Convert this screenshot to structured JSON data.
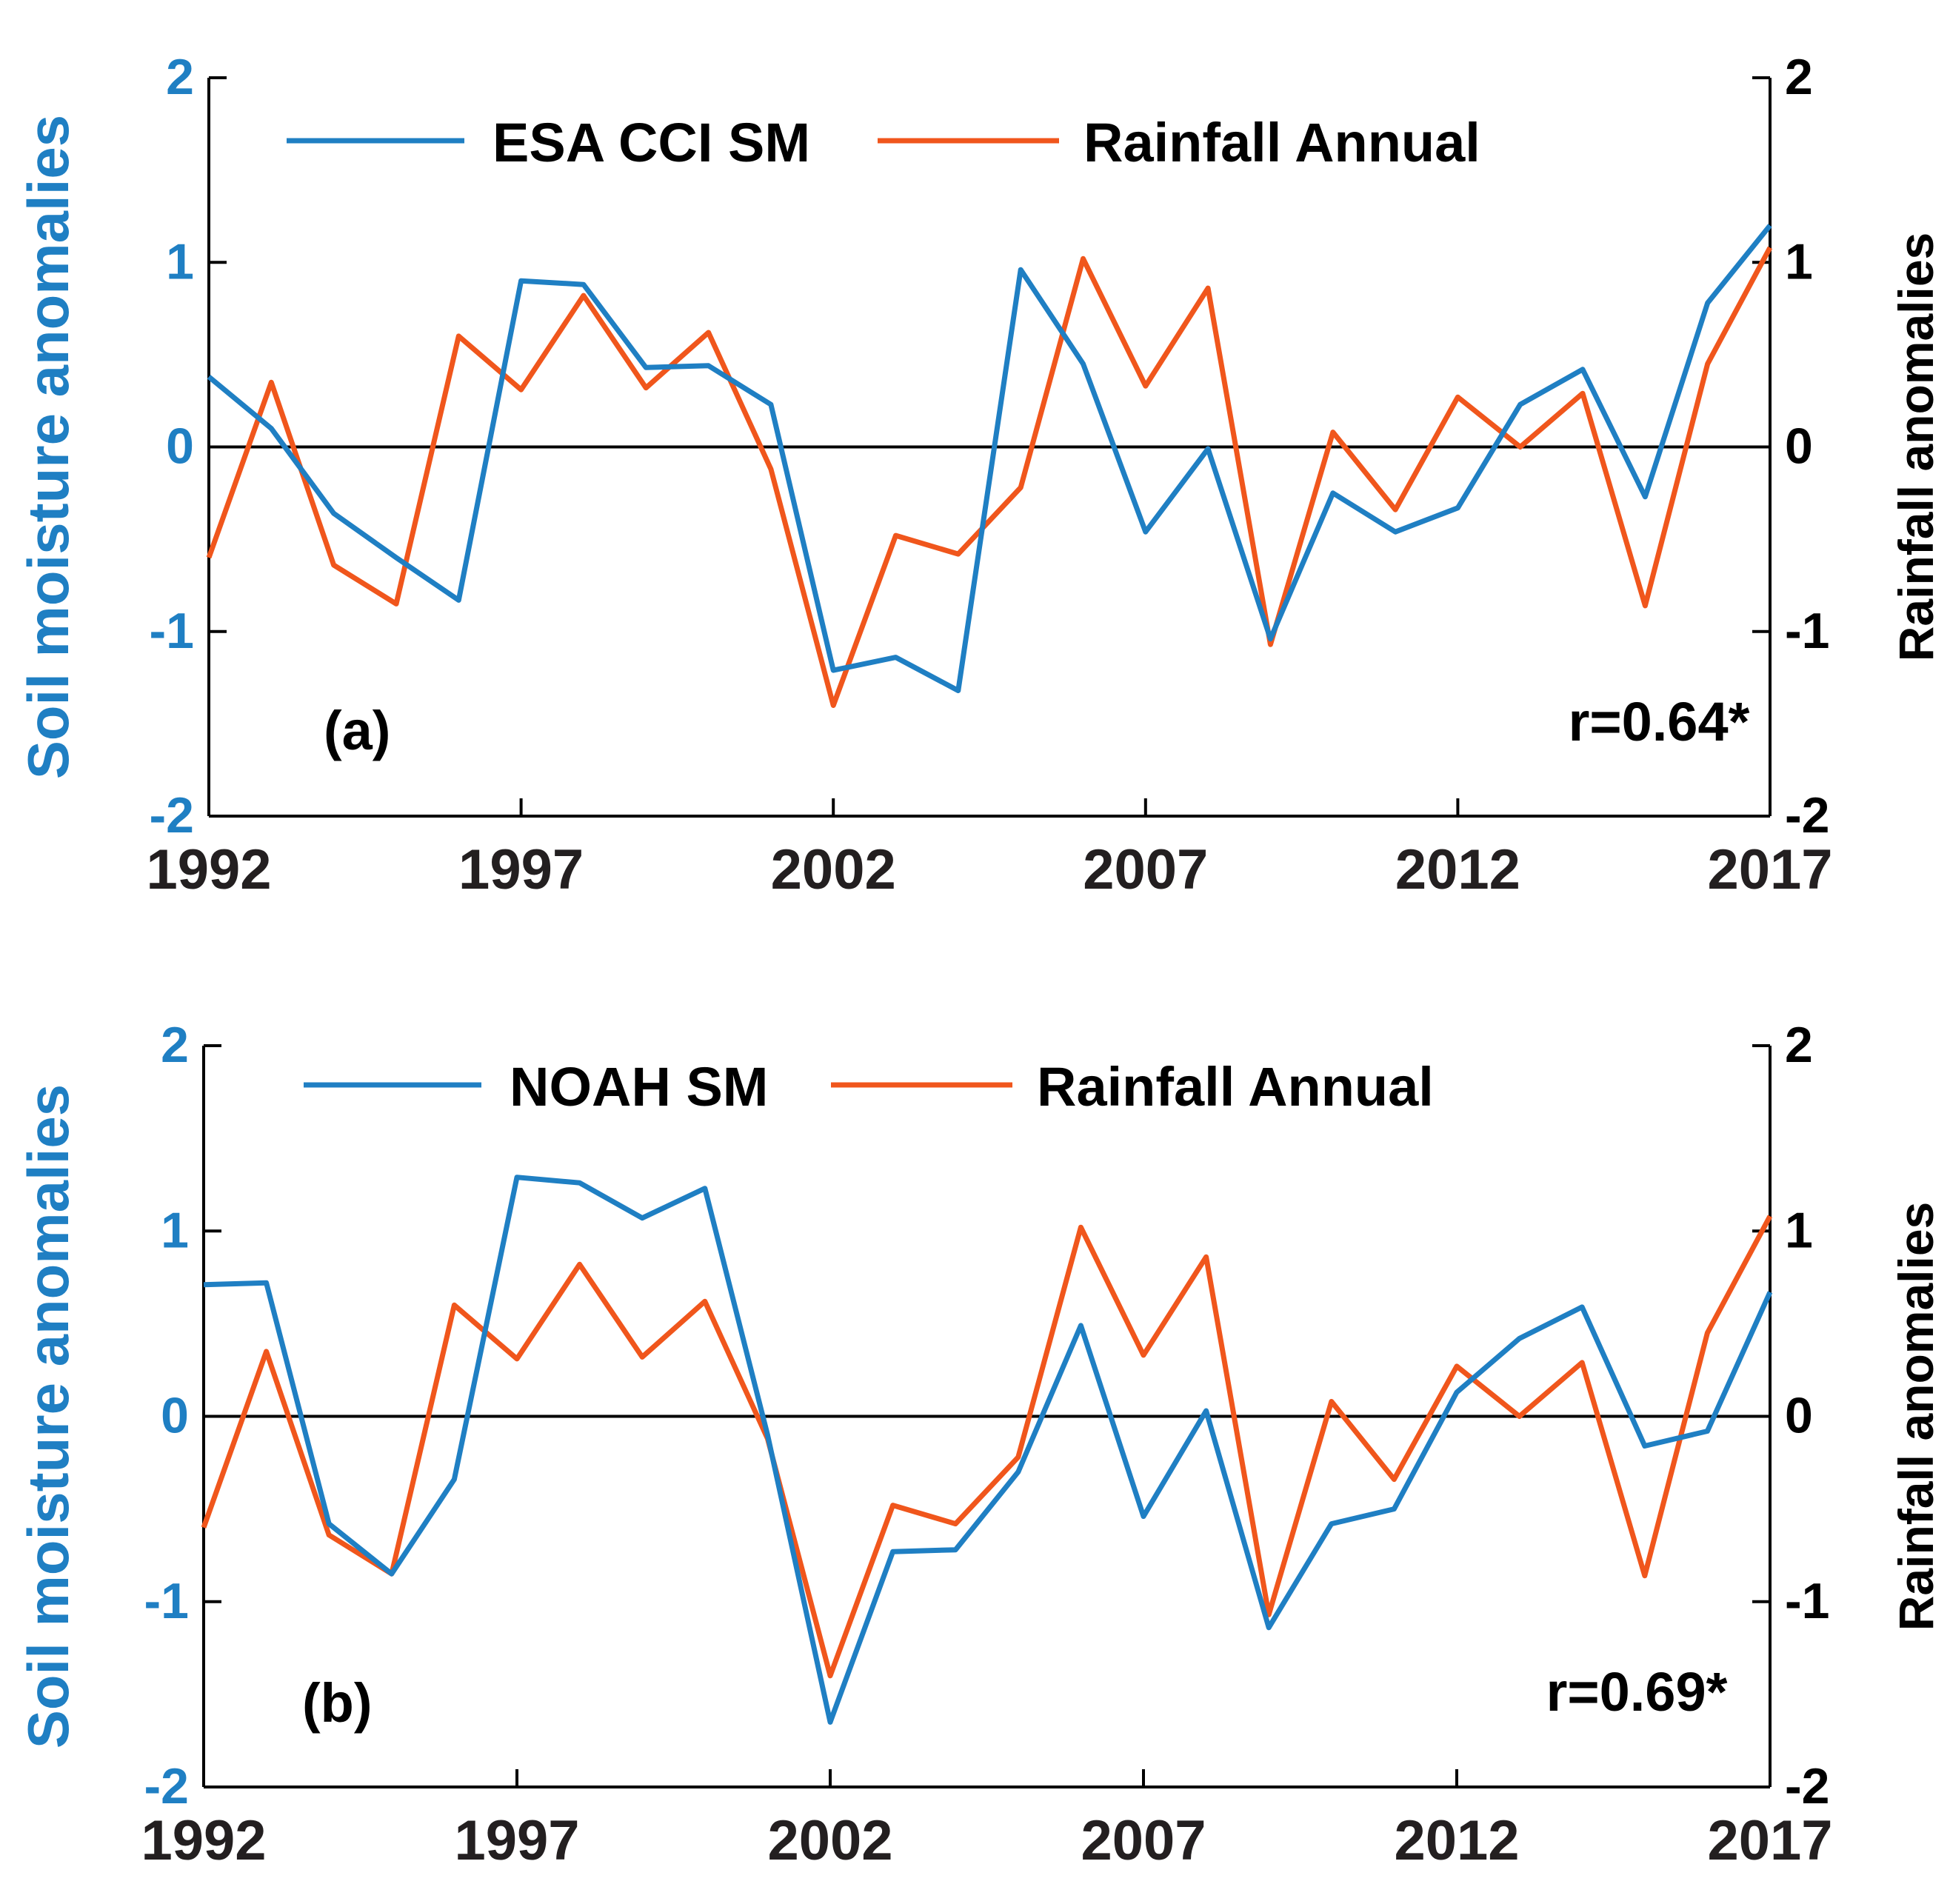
{
  "chart_data": [
    {
      "type": "line",
      "panel_label": "(a)",
      "annotation": "r=0.64*",
      "xlim": [
        1992,
        2017
      ],
      "xticks": [
        "1992",
        "1997",
        "2002",
        "2007",
        "2012",
        "2017"
      ],
      "left_axis": {
        "label": "Soil moisture anomalies",
        "ylim": [
          -2,
          2
        ],
        "ticks": [
          "-2",
          "-1",
          "0",
          "1",
          "2"
        ],
        "color": "#1F7FC3"
      },
      "right_axis": {
        "label": "Rainfall anomalies",
        "ylim": [
          -2,
          2
        ],
        "ticks": [
          "-2",
          "-1",
          "0",
          "1",
          "2"
        ],
        "color": "#000000"
      },
      "x": [
        1992,
        1993,
        1994,
        1995,
        1996,
        1997,
        1998,
        1999,
        2000,
        2001,
        2002,
        2003,
        2004,
        2005,
        2006,
        2007,
        2008,
        2009,
        2010,
        2011,
        2012,
        2013,
        2014,
        2015,
        2016,
        2017
      ],
      "series": [
        {
          "name": "ESA CCI SM",
          "color": "#1F7FC3",
          "axis": "left",
          "values": [
            0.38,
            0.1,
            -0.36,
            -0.6,
            -0.83,
            0.9,
            0.88,
            0.43,
            0.44,
            0.23,
            -1.21,
            -1.14,
            -1.32,
            0.96,
            0.45,
            -0.46,
            -0.01,
            -1.04,
            -0.25,
            -0.46,
            -0.33,
            0.23,
            0.42,
            -0.27,
            0.78,
            1.2
          ]
        },
        {
          "name": "Rainfall Annual",
          "color": "#F0561C",
          "axis": "right",
          "values": [
            -0.6,
            0.35,
            -0.64,
            -0.85,
            0.6,
            0.31,
            0.82,
            0.32,
            0.62,
            -0.12,
            -1.4,
            -0.48,
            -0.58,
            -0.22,
            1.02,
            0.33,
            0.86,
            -1.07,
            0.08,
            -0.34,
            0.27,
            0.0,
            0.29,
            -0.86,
            0.45,
            1.08
          ]
        }
      ]
    },
    {
      "type": "line",
      "panel_label": "(b)",
      "annotation": "r=0.69*",
      "xlim": [
        1992,
        2017
      ],
      "xticks": [
        "1992",
        "1997",
        "2002",
        "2007",
        "2012",
        "2017"
      ],
      "left_axis": {
        "label": "Soil moisture anomalies",
        "ylim": [
          -2,
          2
        ],
        "ticks": [
          "-2",
          "-1",
          "0",
          "1",
          "2"
        ],
        "color": "#1F7FC3"
      },
      "right_axis": {
        "label": "Rainfall anomalies",
        "ylim": [
          -2,
          2
        ],
        "ticks": [
          "-2",
          "-1",
          "0",
          "1",
          "2"
        ],
        "color": "#000000"
      },
      "x": [
        1992,
        1993,
        1994,
        1995,
        1996,
        1997,
        1998,
        1999,
        2000,
        2001,
        2002,
        2003,
        2004,
        2005,
        2006,
        2007,
        2008,
        2009,
        2010,
        2011,
        2012,
        2013,
        2014,
        2015,
        2016,
        2017
      ],
      "series": [
        {
          "name": "NOAH SM",
          "color": "#1F7FC3",
          "axis": "left",
          "values": [
            0.71,
            0.72,
            -0.58,
            -0.85,
            -0.34,
            1.29,
            1.26,
            1.07,
            1.23,
            -0.1,
            -1.65,
            -0.73,
            -0.72,
            -0.3,
            0.49,
            -0.54,
            0.03,
            -1.14,
            -0.58,
            -0.5,
            0.13,
            0.42,
            0.59,
            -0.16,
            -0.08,
            0.67
          ]
        },
        {
          "name": "Rainfall Annual",
          "color": "#F0561C",
          "axis": "right",
          "values": [
            -0.6,
            0.35,
            -0.64,
            -0.85,
            0.6,
            0.31,
            0.82,
            0.32,
            0.62,
            -0.12,
            -1.4,
            -0.48,
            -0.58,
            -0.22,
            1.02,
            0.33,
            0.86,
            -1.07,
            0.08,
            -0.34,
            0.27,
            0.0,
            0.29,
            -0.86,
            0.45,
            1.08
          ]
        }
      ]
    }
  ]
}
